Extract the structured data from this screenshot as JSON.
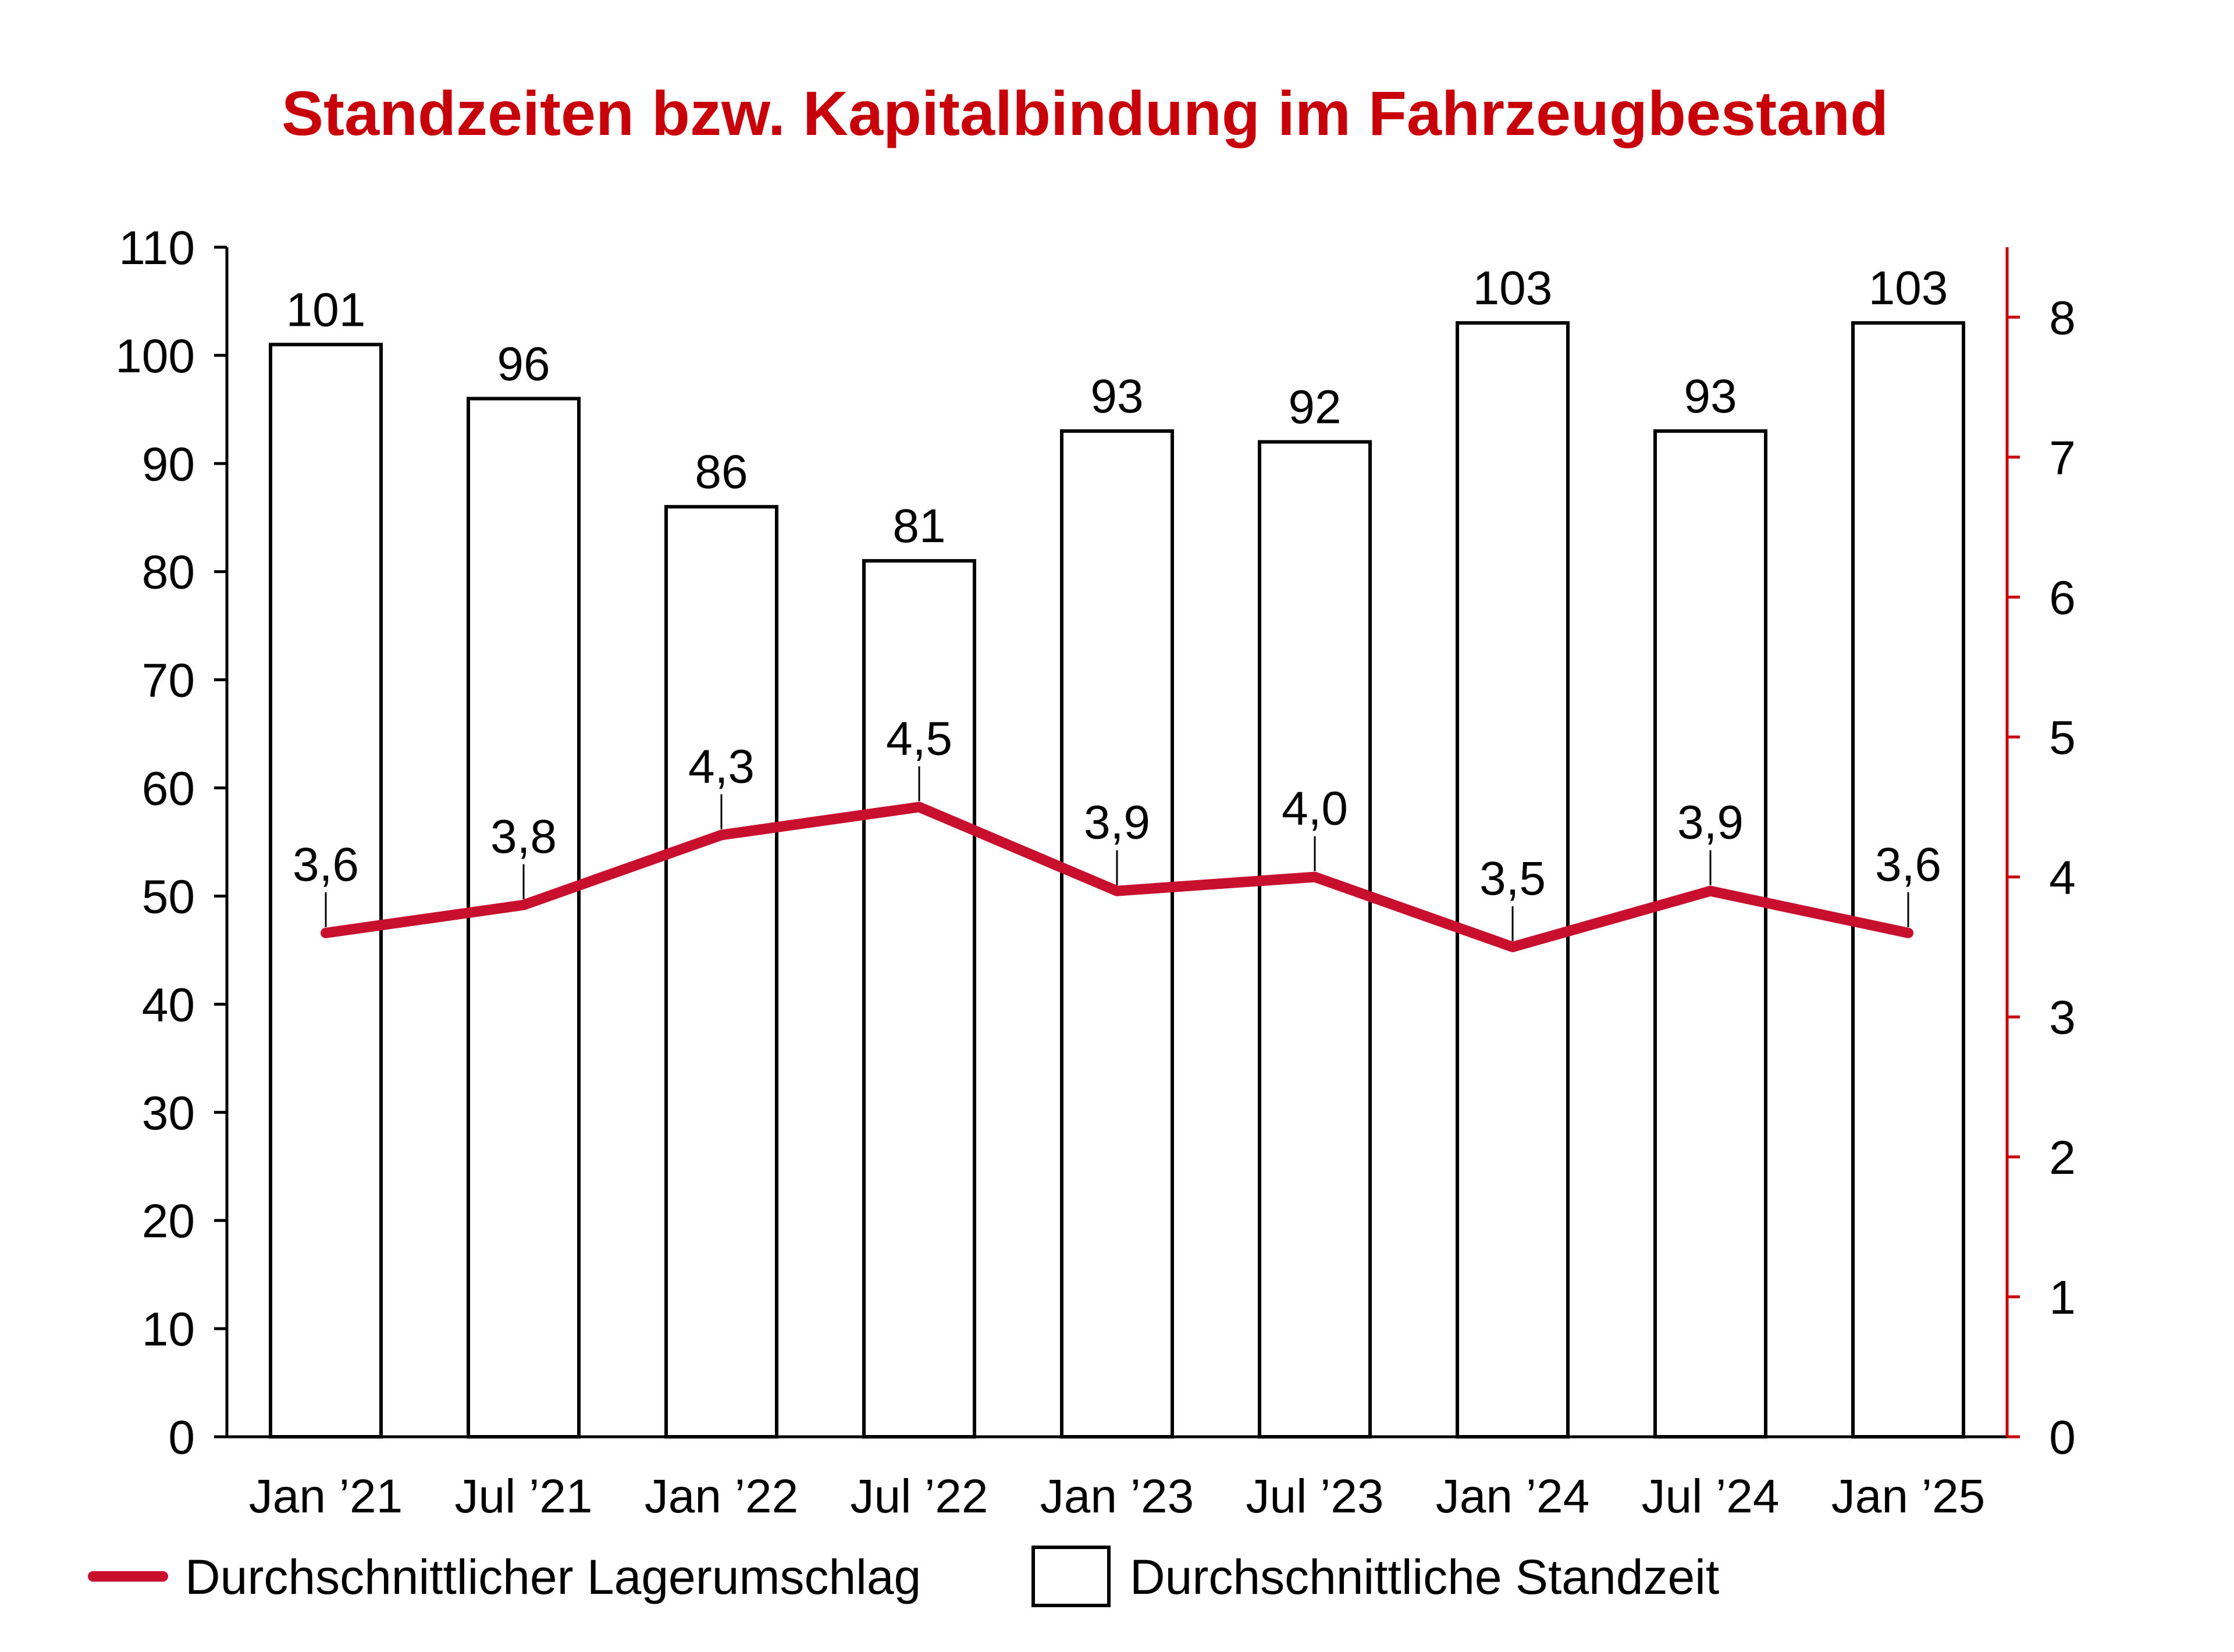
{
  "chart_data": {
    "type": "bar",
    "title": "Standzeiten bzw. Kapitalbindung im Fahrzeugbestand",
    "categories": [
      "Jan ’21",
      "Jul ’21",
      "Jan ’22",
      "Jul ’22",
      "Jan ’23",
      "Jul ’23",
      "Jan ’24",
      "Jul ’24",
      "Jan ’25"
    ],
    "series": [
      {
        "name": "Durchschnittliche Standzeit",
        "type": "bar",
        "axis": "left",
        "values": [
          101,
          96,
          86,
          81,
          93,
          92,
          103,
          93,
          103
        ],
        "value_labels": [
          "101",
          "96",
          "86",
          "81",
          "93",
          "92",
          "103",
          "93",
          "103"
        ],
        "color": "#ffffff",
        "stroke": "#000000"
      },
      {
        "name": "Durchschnittlicher Lagerumschlag",
        "type": "line",
        "axis": "right",
        "values": [
          3.6,
          3.8,
          4.3,
          4.5,
          3.9,
          4.0,
          3.5,
          3.9,
          3.6
        ],
        "value_labels": [
          "3,6",
          "3,8",
          "4,3",
          "4,5",
          "3,9",
          "4,0",
          "3,5",
          "3,9",
          "3,6"
        ],
        "color": "#c8102e"
      }
    ],
    "y_left": {
      "ylim": [
        0,
        110
      ],
      "ticks": [
        0,
        10,
        20,
        30,
        40,
        50,
        60,
        70,
        80,
        90,
        100,
        110
      ],
      "tick_labels": [
        "0",
        "10",
        "20",
        "30",
        "40",
        "50",
        "60",
        "70",
        "80",
        "90",
        "100",
        "110"
      ]
    },
    "y_right": {
      "ylim": [
        0,
        8.5
      ],
      "ticks": [
        0,
        1,
        2,
        3,
        4,
        5,
        6,
        7,
        8
      ],
      "tick_labels": [
        "0",
        "1",
        "2",
        "3",
        "4",
        "5",
        "6",
        "7",
        "8"
      ],
      "color": "#c8000a"
    },
    "legend": {
      "placement": "bottom-left",
      "entries": [
        "Durchschnittlicher Lagerumschlag",
        "Durchschnittliche Standzeit"
      ]
    },
    "grid": false,
    "colors": {
      "title": "#c8000a",
      "line": "#c8102e",
      "axis": "#000000",
      "right_axis": "#c8000a"
    }
  }
}
